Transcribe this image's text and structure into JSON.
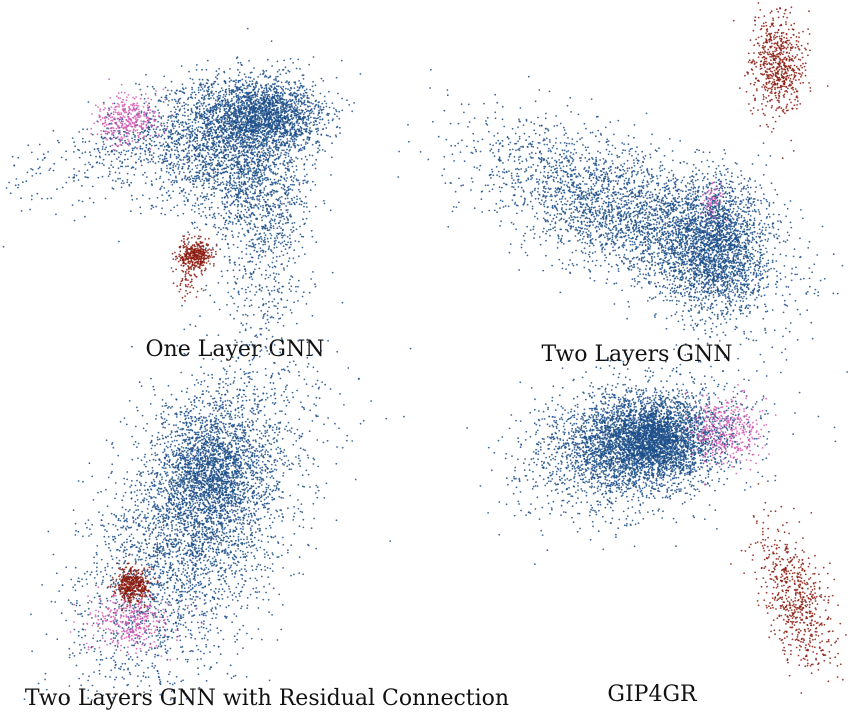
{
  "figure": {
    "panels": [
      {
        "title": "One Layer GNN"
      },
      {
        "title": "Two Layers GNN"
      },
      {
        "title": "Two Layers GNN with Residual Connection"
      },
      {
        "title": "GIP4GR"
      }
    ]
  },
  "colors": {
    "blue_cluster": "#1c4f8a",
    "dark_red_cluster": "#8b1a0e",
    "pink_cluster": "#d65bb3"
  },
  "chart_data": [
    {
      "type": "scatter",
      "title": "One Layer GNN",
      "xlabel": "",
      "ylabel": "",
      "grid": false,
      "series": [
        {
          "color": "#1c4f8a",
          "points": 5200,
          "shape": "curved band, densest upper right"
        },
        {
          "color": "#d65bb3",
          "points": 350,
          "shape": "small cluster at left tip of blue band"
        },
        {
          "color": "#8b1a0e",
          "points": 420,
          "shape": "compact cluster below blue band"
        }
      ]
    },
    {
      "type": "scatter",
      "title": "Two Layers GNN",
      "xlabel": "",
      "ylabel": "",
      "grid": false,
      "series": [
        {
          "color": "#1c4f8a",
          "points": 5200,
          "shape": "elongated diagonal band, dense right end"
        },
        {
          "color": "#d65bb3",
          "points": 60,
          "shape": "few points inside right end of blue band"
        },
        {
          "color": "#8b1a0e",
          "points": 650,
          "shape": "separate elongated cluster top-right"
        }
      ]
    },
    {
      "type": "scatter",
      "title": "Two Layers GNN with Residual Connection",
      "xlabel": "",
      "ylabel": "",
      "grid": false,
      "series": [
        {
          "color": "#1c4f8a",
          "points": 5200,
          "shape": "large diagonal elongated cloud"
        },
        {
          "color": "#8b1a0e",
          "points": 450,
          "shape": "compact cluster at lower-left edge of blue cloud"
        },
        {
          "color": "#d65bb3",
          "points": 330,
          "shape": "cluster below red cluster, overlapping blue"
        }
      ]
    },
    {
      "type": "scatter",
      "title": "GIP4GR",
      "xlabel": "",
      "ylabel": "",
      "grid": false,
      "series": [
        {
          "color": "#1c4f8a",
          "points": 5200,
          "shape": "dense compact oval"
        },
        {
          "color": "#d65bb3",
          "points": 380,
          "shape": "cluster at right edge of blue oval"
        },
        {
          "color": "#8b1a0e",
          "points": 650,
          "shape": "separate elongated cluster bottom-right"
        }
      ]
    }
  ]
}
